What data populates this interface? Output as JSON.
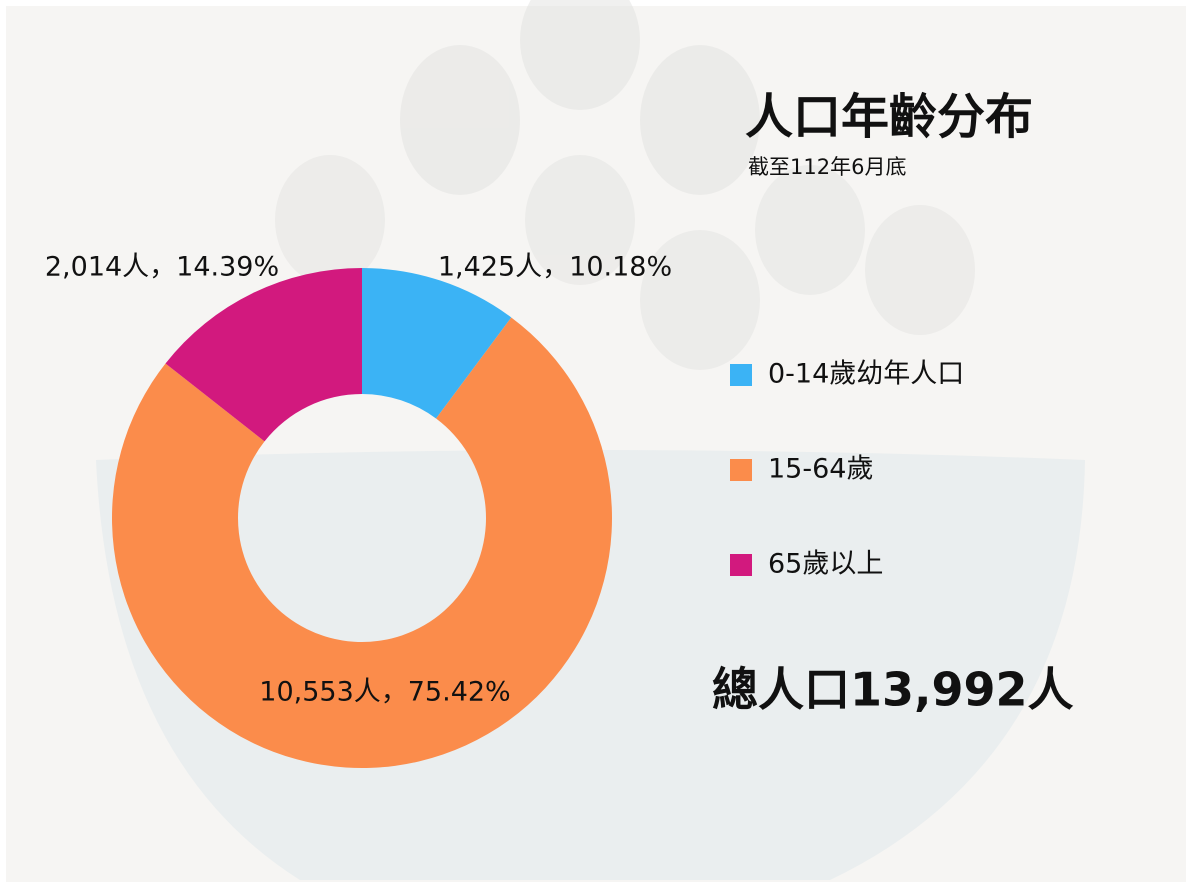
{
  "chart_data": {
    "type": "donut",
    "title": "人口年齡分布",
    "subtitle": "截至112年6月底",
    "annotation": "總人口13,992人",
    "categories": [
      "0-14歲幼年人口",
      "15-64歲",
      "65歲以上"
    ],
    "values": [
      1425,
      10553,
      2014
    ],
    "value_labels": [
      "1,425人，10.18%",
      "10,553人，75.42%",
      "2,014人，14.39%"
    ],
    "colors": [
      "#3bb3f5",
      "#fb8c4b",
      "#d2197e"
    ],
    "legend": "right"
  }
}
